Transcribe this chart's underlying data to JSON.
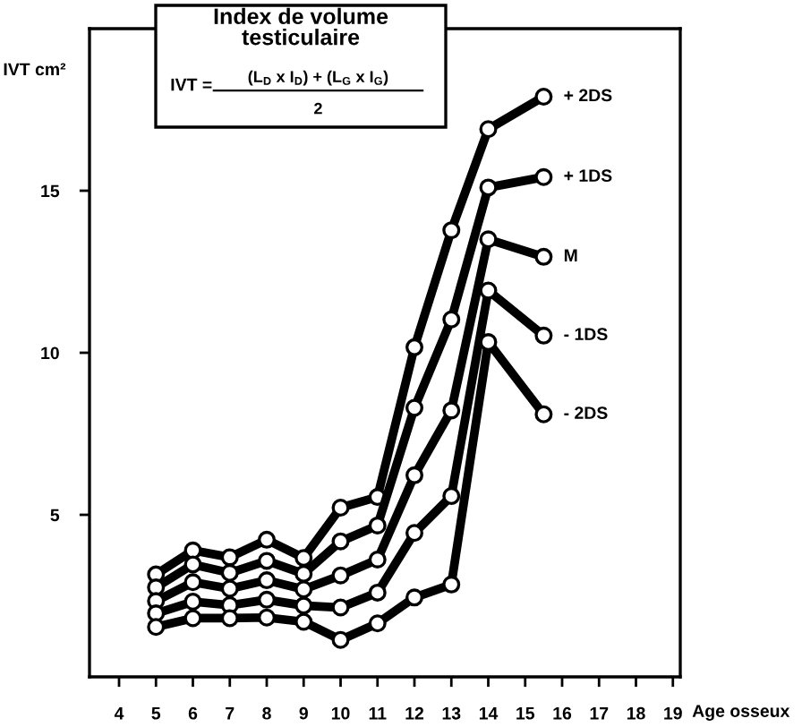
{
  "chart_data": {
    "type": "line",
    "title": "Index de volume\ntesticulaire",
    "xlabel": "Age osseux",
    "ylabel": "IVT cm²",
    "annotations": [
      "IVT =",
      "(L$_{D}$ x I$_{D}$) + (L$_{G}$ x I$_{G}$)",
      "2"
    ],
    "x": [
      5,
      6,
      7,
      8,
      9,
      10,
      11,
      12,
      13,
      14,
      15.5
    ],
    "series": [
      {
        "name": "+ 2DS",
        "color": "#000000",
        "values": [
          3.16,
          3.9,
          3.69,
          4.23,
          3.67,
          5.22,
          5.55,
          10.17,
          13.78,
          16.9,
          17.9
        ]
      },
      {
        "name": "+ 1DS",
        "color": "#000000",
        "values": [
          2.76,
          3.47,
          3.21,
          3.58,
          3.18,
          4.18,
          4.67,
          8.3,
          11.03,
          15.1,
          15.42
        ]
      },
      {
        "name": "M",
        "color": "#000000",
        "values": [
          2.34,
          2.92,
          2.72,
          2.98,
          2.7,
          3.13,
          3.62,
          6.22,
          8.22,
          13.5,
          12.96
        ]
      },
      {
        "name": "- 1DS",
        "color": "#000000",
        "values": [
          1.96,
          2.32,
          2.21,
          2.38,
          2.2,
          2.14,
          2.6,
          4.44,
          5.58,
          11.92,
          10.53
        ]
      },
      {
        "name": "- 2DS",
        "color": "#000000",
        "values": [
          1.54,
          1.81,
          1.81,
          1.83,
          1.7,
          1.14,
          1.65,
          2.45,
          2.85,
          10.33,
          8.1
        ]
      }
    ],
    "xlim": [
      3.2,
      19.2
    ],
    "ylim": [
      0,
      20
    ],
    "xticks": [
      4,
      5,
      6,
      7,
      8,
      9,
      10,
      11,
      12,
      13,
      14,
      15,
      16,
      17,
      18,
      19
    ],
    "yticks": [
      5,
      10,
      15
    ],
    "grid": false,
    "legend": false,
    "marker": "circle",
    "line_style": "solid"
  }
}
